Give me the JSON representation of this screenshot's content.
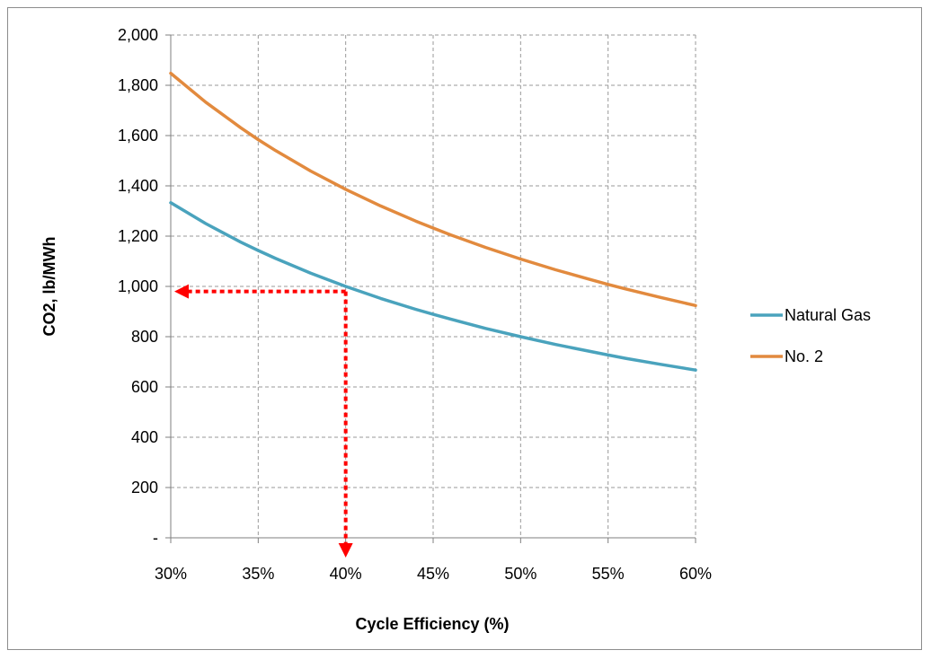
{
  "chart_data": {
    "type": "line",
    "title": "",
    "xlabel": "Cycle Efficiency (%)",
    "ylabel": "CO2, lb/MWh",
    "xlim": [
      30,
      60
    ],
    "ylim": [
      0,
      2000
    ],
    "x_ticks": [
      30,
      35,
      40,
      45,
      50,
      55,
      60
    ],
    "x_tick_labels": [
      "30%",
      "35%",
      "40%",
      "45%",
      "50%",
      "55%",
      "60%"
    ],
    "y_ticks": [
      0,
      200,
      400,
      600,
      800,
      1000,
      1200,
      1400,
      1600,
      1800,
      2000
    ],
    "y_tick_labels": [
      "-",
      "200",
      "400",
      "600",
      "800",
      "1,000",
      "1,200",
      "1,400",
      "1,600",
      "1,800",
      "2,000"
    ],
    "grid": "dashed",
    "legend_position": "right",
    "series": [
      {
        "name": "Natural Gas",
        "color": "#4aa3bd",
        "x": [
          30,
          32,
          34,
          35,
          36,
          38,
          40,
          42,
          44,
          45,
          46,
          48,
          50,
          52,
          54,
          55,
          56,
          58,
          60
        ],
        "values": [
          1333,
          1250,
          1176,
          1143,
          1111,
          1053,
          1000,
          952,
          909,
          889,
          870,
          833,
          800,
          769,
          741,
          727,
          714,
          690,
          667
        ]
      },
      {
        "name": "No. 2",
        "color": "#e28a3e",
        "x": [
          30,
          32,
          34,
          35,
          36,
          38,
          40,
          42,
          44,
          45,
          46,
          48,
          50,
          52,
          54,
          55,
          56,
          58,
          60
        ],
        "values": [
          1848,
          1733,
          1631,
          1584,
          1540,
          1459,
          1386,
          1320,
          1260,
          1232,
          1205,
          1155,
          1109,
          1066,
          1027,
          1008,
          990,
          956,
          924
        ]
      }
    ],
    "annotation": {
      "color": "#ff0000",
      "point": [
        40,
        980
      ]
    }
  }
}
